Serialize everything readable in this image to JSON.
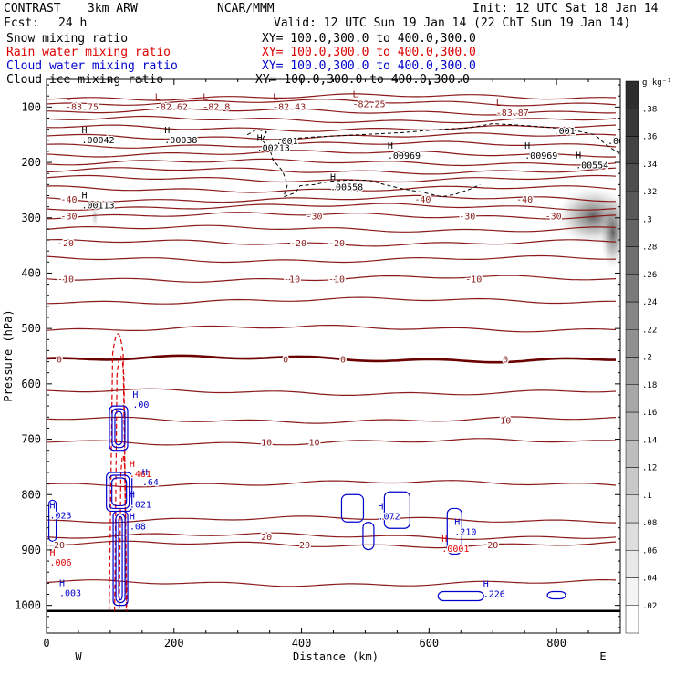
{
  "header": {
    "project": "CONTRAST",
    "model": "3km ARW",
    "center": "NCAR/MMM",
    "init": "Init: 12 UTC Sat 18 Jan 14",
    "fcst_label": "Fcst:",
    "fcst_value": "24 h",
    "valid": "Valid: 12 UTC Sun 19 Jan 14 (22 ChT Sun 19 Jan 14)"
  },
  "legend": [
    {
      "name": "Snow mixing ratio",
      "xy": "XY= 100.0,300.0 to 400.0,300.0",
      "color": "#000000"
    },
    {
      "name": "Rain water mixing ratio",
      "xy": "XY= 100.0,300.0 to 400.0,300.0",
      "color": "#dd0000"
    },
    {
      "name": "Cloud water mixing ratio",
      "xy": "XY= 100.0,300.0 to 400.0,300.0",
      "color": "#0000cc"
    },
    {
      "name": "Cloud ice mixing ratio",
      "xy": "XY= 100.0,300.0 to 400.0,300.0",
      "color": "#000000"
    }
  ],
  "colors": {
    "temperature": "#8b1a1a",
    "zero_isotherm": "#6b0000",
    "rain": "#dd0000",
    "cloud_water": "#0000cc",
    "snow": "#000000"
  },
  "chart_data": {
    "type": "cross-section",
    "xlabel": "Distance (km)",
    "ylabel": "Pressure (hPa)",
    "xlim": [
      0,
      900
    ],
    "ylim": [
      1050,
      50
    ],
    "x_ticks": [
      0,
      200,
      400,
      600,
      800
    ],
    "y_ticks": [
      100,
      200,
      300,
      400,
      500,
      600,
      700,
      800,
      900,
      1000
    ],
    "x_endpoints": {
      "left": "W",
      "right": "E"
    },
    "colorbar": {
      "unit": "g kg⁻¹",
      "ticks": [
        ".02",
        ".04",
        ".06",
        ".08",
        ".1",
        ".12",
        ".14",
        ".16",
        ".18",
        ".2",
        ".22",
        ".24",
        ".26",
        ".28",
        ".3",
        ".32",
        ".34",
        ".36",
        ".38"
      ]
    },
    "surface_pressure": 1010,
    "temperature_contours": [
      {
        "p": 82,
        "label": null
      },
      {
        "p": 92,
        "label": null
      },
      {
        "p": 108,
        "label": null
      },
      {
        "p": 123,
        "label": null
      },
      {
        "p": 138,
        "label": null
      },
      {
        "p": 153,
        "label": null
      },
      {
        "p": 168,
        "label": null
      },
      {
        "p": 184,
        "label": null
      },
      {
        "p": 200,
        "label": null
      },
      {
        "p": 215,
        "label": null
      },
      {
        "p": 230,
        "label": null
      },
      {
        "p": 248,
        "label": null
      },
      {
        "p": 266,
        "label": "-40",
        "label_x": [
          35,
          590,
          750
        ]
      },
      {
        "p": 280,
        "label": null
      },
      {
        "p": 296,
        "label": "-30",
        "label_x": [
          35,
          420,
          660,
          795
        ]
      },
      {
        "p": 320,
        "label": null
      },
      {
        "p": 345,
        "label": "-20",
        "label_x": [
          30,
          395,
          455
        ]
      },
      {
        "p": 375,
        "label": null
      },
      {
        "p": 410,
        "label": "-10",
        "label_x": [
          30,
          385,
          455,
          670
        ]
      },
      {
        "p": 450,
        "label": null
      },
      {
        "p": 500,
        "label": null
      },
      {
        "p": 555,
        "label": "0",
        "label_x": [
          20,
          375,
          465,
          720
        ],
        "zero": true
      },
      {
        "p": 615,
        "label": null
      },
      {
        "p": 665,
        "label": "10",
        "label_x": [
          720
        ]
      },
      {
        "p": 705,
        "label": "10",
        "label_x": [
          345,
          420
        ]
      },
      {
        "p": 780,
        "label": null
      },
      {
        "p": 845,
        "label": null
      },
      {
        "p": 875,
        "label": "20",
        "label_x": [
          345
        ]
      },
      {
        "p": 890,
        "label": "20",
        "label_x": [
          20,
          405,
          700
        ]
      },
      {
        "p": 960,
        "label": null
      }
    ],
    "min_max_labels": [
      {
        "x": 30,
        "p": 102,
        "text": "-83.75",
        "kind": "L"
      },
      {
        "x": 170,
        "p": 102,
        "text": "-82.62",
        "kind": "L"
      },
      {
        "x": 245,
        "p": 102,
        "text": "-82.8",
        "kind": "L"
      },
      {
        "x": 355,
        "p": 102,
        "text": "-82.43",
        "kind": "L"
      },
      {
        "x": 480,
        "p": 97,
        "text": "-82.25",
        "kind": "L"
      },
      {
        "x": 705,
        "p": 113,
        "text": "-83.87",
        "kind": "L"
      },
      {
        "x": 55,
        "p": 162,
        "text": ".00042",
        "kind": "H"
      },
      {
        "x": 185,
        "p": 162,
        "text": ".00038",
        "kind": "H"
      },
      {
        "x": 330,
        "p": 176,
        "text": ".00213",
        "kind": "H"
      },
      {
        "x": 535,
        "p": 190,
        "text": ".00969",
        "kind": "H"
      },
      {
        "x": 750,
        "p": 190,
        "text": ".00969",
        "kind": "H"
      },
      {
        "x": 830,
        "p": 207,
        "text": ".00554",
        "kind": "H"
      },
      {
        "x": 445,
        "p": 247,
        "text": ".00558",
        "kind": "H"
      },
      {
        "x": 55,
        "p": 280,
        "text": ".00113",
        "kind": "H"
      },
      {
        "x": 135,
        "p": 640,
        "text": ".00",
        "kind": "H"
      },
      {
        "x": 130,
        "p": 765,
        "text": ".461",
        "kind": "H"
      },
      {
        "x": 150,
        "p": 780,
        "text": ".64",
        "kind": "H"
      },
      {
        "x": 130,
        "p": 820,
        "text": ".021",
        "kind": "H"
      },
      {
        "x": 130,
        "p": 860,
        "text": ".08",
        "kind": "H"
      },
      {
        "x": 5,
        "p": 840,
        "text": ".023",
        "kind": "H"
      },
      {
        "x": 5,
        "p": 925,
        "text": ".006",
        "kind": "H"
      },
      {
        "x": 20,
        "p": 980,
        "text": ".003",
        "kind": "H"
      },
      {
        "x": 520,
        "p": 842,
        "text": ".072",
        "kind": "H"
      },
      {
        "x": 640,
        "p": 870,
        "text": ".210",
        "kind": "H"
      },
      {
        "x": 620,
        "p": 900,
        "text": ".0001",
        "kind": "H"
      },
      {
        "x": 685,
        "p": 982,
        "text": ".226",
        "kind": "H"
      }
    ],
    "freezing_ice_labels": [
      {
        "x": 360,
        "p": 160,
        "text": ".001"
      },
      {
        "x": 795,
        "p": 142,
        "text": ".001"
      },
      {
        "x": 880,
        "p": 160,
        "text": ".001"
      }
    ]
  }
}
